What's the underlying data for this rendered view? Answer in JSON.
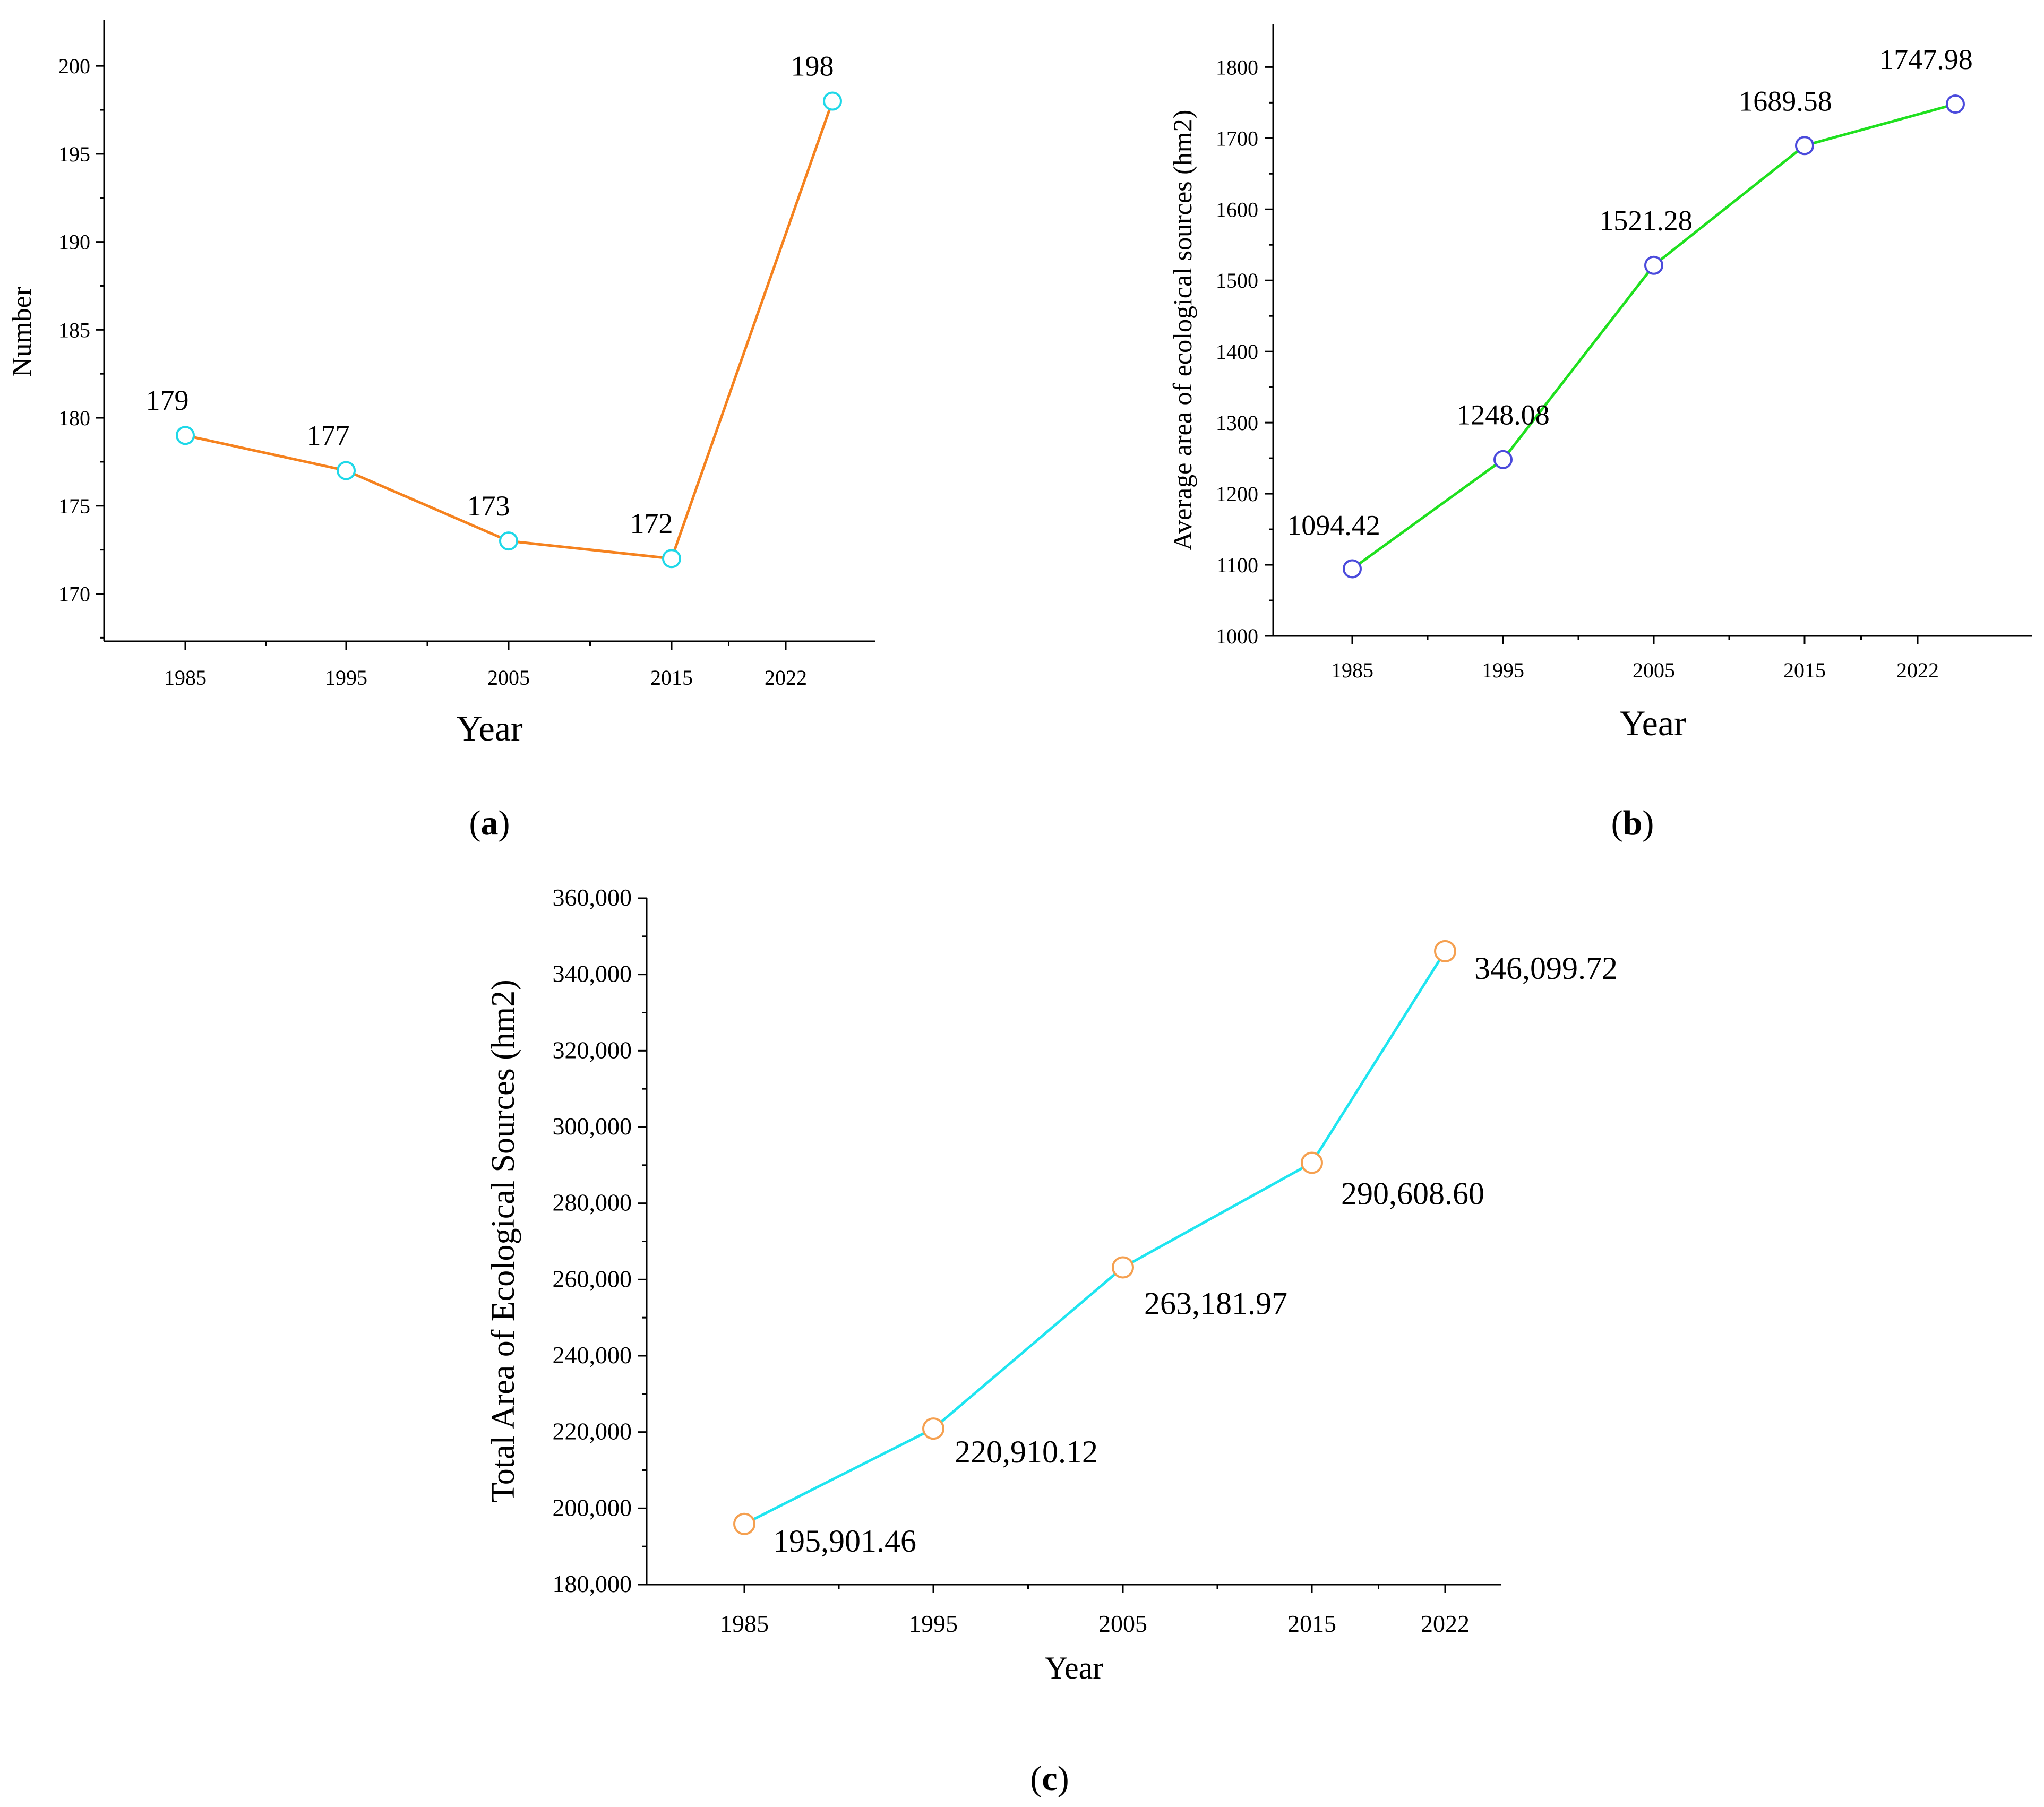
{
  "chart_data": [
    {
      "id": "a",
      "type": "line",
      "caption_letter": "a",
      "xlabel": "Year",
      "ylabel": "Number",
      "categories": [
        "1985",
        "1995",
        "2005",
        "2015",
        "2022"
      ],
      "values": [
        179,
        177,
        173,
        172,
        198
      ],
      "data_labels": [
        "179",
        "177",
        "173",
        "172",
        "198"
      ],
      "yticks": [
        170,
        175,
        180,
        185,
        190,
        195,
        200
      ],
      "ytick_labels": [
        "170",
        "175",
        "180",
        "185",
        "190",
        "195",
        "200"
      ],
      "ylim": [
        167.3,
        202.6
      ],
      "line_color": "#f5821f",
      "marker_color": "#1fd8e8"
    },
    {
      "id": "b",
      "type": "line",
      "caption_letter": "b",
      "xlabel": "Year",
      "ylabel": "Average area of ecological sources (hm2)",
      "categories": [
        "1985",
        "1995",
        "2005",
        "2015",
        "2022"
      ],
      "values": [
        1094.42,
        1248.08,
        1521.28,
        1689.58,
        1747.98
      ],
      "data_labels": [
        "1094.42",
        "1248.08",
        "1521.28",
        "1689.58",
        "1747.98"
      ],
      "yticks": [
        1000,
        1100,
        1200,
        1300,
        1400,
        1500,
        1600,
        1700,
        1800
      ],
      "ytick_labels": [
        "1000",
        "1100",
        "1200",
        "1300",
        "1400",
        "1500",
        "1600",
        "1700",
        "1800"
      ],
      "ylim": [
        1000,
        1860
      ],
      "line_color": "#1fe01f",
      "marker_color": "#4b4bdc"
    },
    {
      "id": "c",
      "type": "line",
      "caption_letter": "c",
      "xlabel": "Year",
      "ylabel": "Total Area of Ecological Sources (hm2)",
      "categories": [
        "1985",
        "1995",
        "2005",
        "2015",
        "2022"
      ],
      "values": [
        195901.46,
        220910.12,
        263181.97,
        290608.6,
        346099.72
      ],
      "data_labels": [
        "195,901.46",
        "220,910.12",
        "263,181.97",
        "290,608.60",
        "346,099.72"
      ],
      "yticks": [
        180000,
        200000,
        220000,
        240000,
        260000,
        280000,
        300000,
        320000,
        340000,
        360000
      ],
      "ytick_labels": [
        "180,000",
        "200,000",
        "220,000",
        "240,000",
        "260,000",
        "280,000",
        "300,000",
        "320,000",
        "340,000",
        "360,000"
      ],
      "ylim": [
        180000,
        360000
      ],
      "line_color": "#1fe5f0",
      "marker_color": "#f5a050"
    }
  ]
}
